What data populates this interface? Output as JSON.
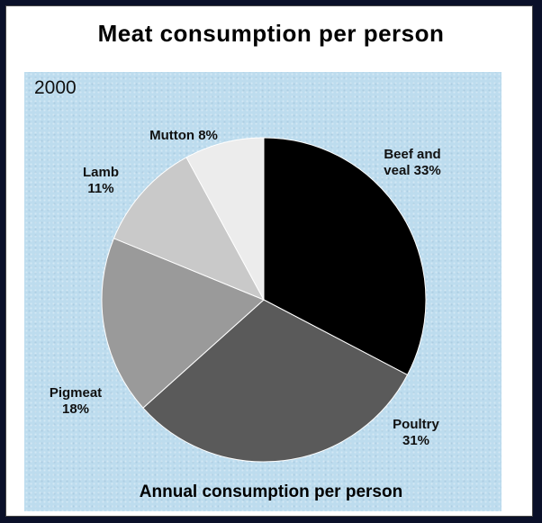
{
  "chart_data": {
    "type": "pie",
    "title": "Meat consumption per person",
    "subtitle": "2000",
    "caption": "Annual consumption per person",
    "slices": [
      {
        "name": "Beef and veal",
        "value": 33,
        "label_lines": [
          "Beef and",
          "veal 33%"
        ],
        "color": "#000000"
      },
      {
        "name": "Poultry",
        "value": 31,
        "label_lines": [
          "Poultry",
          "31%"
        ],
        "color": "#5a5a5a"
      },
      {
        "name": "Pigmeat",
        "value": 18,
        "label_lines": [
          "Pigmeat",
          "18%"
        ],
        "color": "#9a9a9a"
      },
      {
        "name": "Lamb",
        "value": 11,
        "label_lines": [
          "Lamb",
          "11%"
        ],
        "color": "#c9c9c9"
      },
      {
        "name": "Mutton",
        "value": 8,
        "label_lines": [
          "Mutton 8%"
        ],
        "color": "#ececec"
      }
    ]
  }
}
